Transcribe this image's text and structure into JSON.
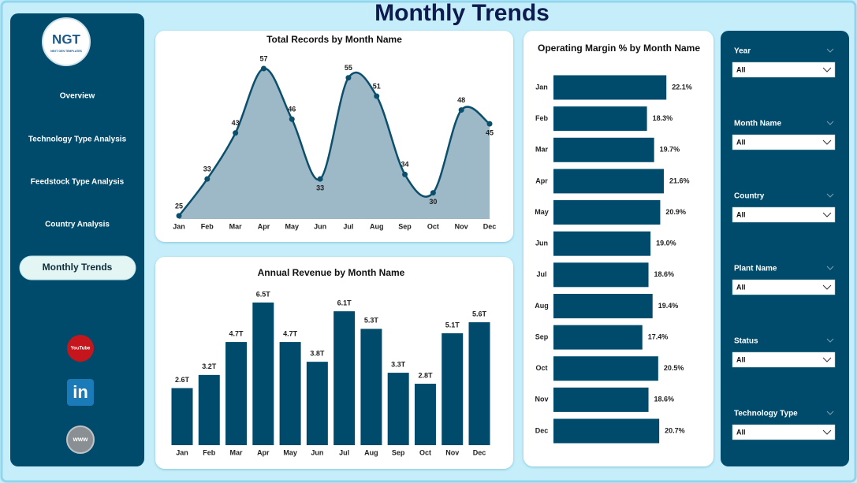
{
  "header": {
    "title": "Monthly Trends"
  },
  "logo": {
    "text": "NGT",
    "tagline": "NEXT GEN TEMPLATES"
  },
  "nav": [
    "Overview",
    "Technology Type Analysis",
    "Feedstock Type Analysis",
    "Country Analysis",
    "Monthly Trends"
  ],
  "nav_active": 4,
  "icons": [
    "YouTube",
    "in",
    "www"
  ],
  "filters": [
    {
      "label": "Year",
      "value": "All"
    },
    {
      "label": "Month Name",
      "value": "All"
    },
    {
      "label": "Country",
      "value": "All"
    },
    {
      "label": "Plant Name",
      "value": "All"
    },
    {
      "label": "Status",
      "value": "All"
    },
    {
      "label": "Technology Type",
      "value": "All"
    }
  ],
  "chart_data": [
    {
      "type": "area",
      "title": "Total Records by Month Name",
      "categories": [
        "Jan",
        "Feb",
        "Mar",
        "Apr",
        "May",
        "Jun",
        "Jul",
        "Aug",
        "Sep",
        "Oct",
        "Nov",
        "Dec"
      ],
      "values": [
        25,
        33,
        43,
        57,
        46,
        33,
        55,
        51,
        34,
        30,
        48,
        45
      ],
      "color": "#0b4f6c",
      "fill_color": "#9db8c6",
      "ylim": [
        24.3,
        58.2
      ]
    },
    {
      "type": "bar",
      "title": "Annual Revenue by Month Name",
      "categories": [
        "Jan",
        "Feb",
        "Mar",
        "Apr",
        "May",
        "Jun",
        "Jul",
        "Aug",
        "Sep",
        "Oct",
        "Nov",
        "Dec"
      ],
      "values": [
        2.6,
        3.2,
        4.7,
        6.5,
        4.7,
        3.8,
        6.1,
        5.3,
        3.3,
        2.8,
        5.1,
        5.6
      ],
      "value_labels": [
        "2.6T",
        "3.2T",
        "4.7T",
        "6.5T",
        "4.7T",
        "3.8T",
        "6.1T",
        "5.3T",
        "3.3T",
        "2.8T",
        "5.1T",
        "5.6T"
      ],
      "color": "#004b6b",
      "ylim": [
        0,
        7
      ]
    },
    {
      "type": "barh",
      "title": "Operating Margin % by Month Name",
      "categories": [
        "Jan",
        "Feb",
        "Mar",
        "Apr",
        "May",
        "Jun",
        "Jul",
        "Aug",
        "Sep",
        "Oct",
        "Nov",
        "Dec"
      ],
      "values": [
        22.1,
        18.3,
        19.7,
        21.6,
        20.9,
        19.0,
        18.6,
        19.4,
        17.4,
        20.5,
        18.6,
        20.7
      ],
      "value_labels": [
        "22.1%",
        "18.3%",
        "19.7%",
        "21.6%",
        "20.9%",
        "19.0%",
        "18.6%",
        "19.4%",
        "17.4%",
        "20.5%",
        "18.6%",
        "20.7%"
      ],
      "color": "#004b6b",
      "xlim": [
        0,
        25
      ]
    }
  ]
}
